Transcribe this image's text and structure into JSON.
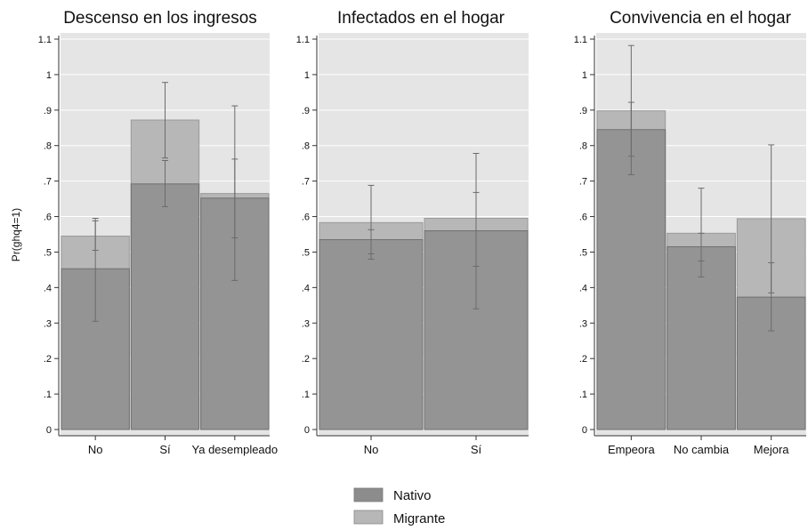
{
  "chart_data": {
    "type": "bar",
    "ylabel": "Pr(ghq4=1)",
    "ylim": [
      0,
      1.1
    ],
    "yticks": [
      "0",
      ".1",
      ".2",
      ".3",
      ".4",
      ".5",
      ".6",
      ".7",
      ".8",
      ".9",
      "1",
      "1.1"
    ],
    "colors": {
      "Nativo": "#8c8c8c",
      "Migrante": "#b7b7b7",
      "panel_bg": "#e5e5e5",
      "error_bar": "#6b6b6b"
    },
    "legend": {
      "placement": "bottom-center",
      "entries": [
        "Nativo",
        "Migrante"
      ]
    },
    "grid": true,
    "panels": [
      {
        "title": "Descenso en los ingresos",
        "categories": [
          "No",
          "Sí",
          "Ya desempleado"
        ],
        "series": [
          {
            "name": "Migrante",
            "values": [
              0.545,
              0.872,
              0.665
            ],
            "ci_low": [
              0.505,
              0.765,
              0.42
            ],
            "ci_high": [
              0.595,
              0.978,
              0.912
            ]
          },
          {
            "name": "Nativo",
            "values": [
              0.453,
              0.692,
              0.652
            ],
            "ci_low": [
              0.305,
              0.628,
              0.54
            ],
            "ci_high": [
              0.588,
              0.758,
              0.762
            ]
          }
        ]
      },
      {
        "title": "Infectados en el hogar",
        "categories": [
          "No",
          "Sí"
        ],
        "series": [
          {
            "name": "Migrante",
            "values": [
              0.583,
              0.595
            ],
            "ci_low": [
              0.48,
              0.34
            ],
            "ci_high": [
              0.688,
              0.778
            ]
          },
          {
            "name": "Nativo",
            "values": [
              0.535,
              0.56
            ],
            "ci_low": [
              0.495,
              0.46
            ],
            "ci_high": [
              0.563,
              0.668
            ]
          }
        ]
      },
      {
        "title": "Convivencia en el hogar",
        "categories": [
          "Empeora",
          "No cambia",
          "Mejora"
        ],
        "series": [
          {
            "name": "Migrante",
            "values": [
              0.898,
              0.553,
              0.594
            ],
            "ci_low": [
              0.718,
              0.43,
              0.385
            ],
            "ci_high": [
              1.082,
              0.68,
              0.802
            ]
          },
          {
            "name": "Nativo",
            "values": [
              0.845,
              0.515,
              0.373
            ],
            "ci_low": [
              0.77,
              0.475,
              0.278
            ],
            "ci_high": [
              0.922,
              0.553,
              0.47
            ]
          }
        ]
      }
    ]
  }
}
